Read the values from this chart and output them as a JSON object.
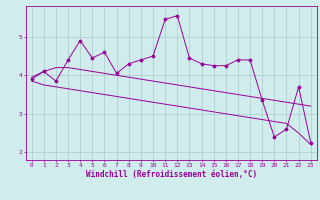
{
  "x": [
    0,
    1,
    2,
    3,
    4,
    5,
    6,
    7,
    8,
    9,
    10,
    11,
    12,
    13,
    14,
    15,
    16,
    17,
    18,
    19,
    20,
    21,
    22,
    23
  ],
  "main_line": [
    3.9,
    4.1,
    3.85,
    4.4,
    4.9,
    4.45,
    4.6,
    4.05,
    4.3,
    4.4,
    4.5,
    5.45,
    5.55,
    4.45,
    4.3,
    4.25,
    4.25,
    4.4,
    4.4,
    3.35,
    2.4,
    2.6,
    3.7,
    2.25
  ],
  "upper_line": [
    3.95,
    4.1,
    4.2,
    4.2,
    4.15,
    4.1,
    4.05,
    4.0,
    3.95,
    3.9,
    3.85,
    3.8,
    3.75,
    3.7,
    3.65,
    3.6,
    3.55,
    3.5,
    3.45,
    3.4,
    3.35,
    3.3,
    3.25,
    3.2
  ],
  "lower_line": [
    3.85,
    3.75,
    3.7,
    3.65,
    3.6,
    3.55,
    3.5,
    3.45,
    3.4,
    3.35,
    3.3,
    3.25,
    3.2,
    3.15,
    3.1,
    3.05,
    3.0,
    2.95,
    2.9,
    2.85,
    2.8,
    2.75,
    2.5,
    2.2
  ],
  "line_color": "#990099",
  "background_color": "#d0ecec",
  "grid_color": "#aacccc",
  "xlabel": "Windchill (Refroidissement éolien,°C)",
  "xlim": [
    -0.5,
    23.5
  ],
  "ylim": [
    1.8,
    5.8
  ],
  "yticks": [
    2,
    3,
    4,
    5
  ],
  "xticks": [
    0,
    1,
    2,
    3,
    4,
    5,
    6,
    7,
    8,
    9,
    10,
    11,
    12,
    13,
    14,
    15,
    16,
    17,
    18,
    19,
    20,
    21,
    22,
    23
  ],
  "tick_fontsize": 4.5,
  "xlabel_fontsize": 5.5,
  "marker": "D",
  "marker_size": 1.5,
  "linewidth": 0.7
}
